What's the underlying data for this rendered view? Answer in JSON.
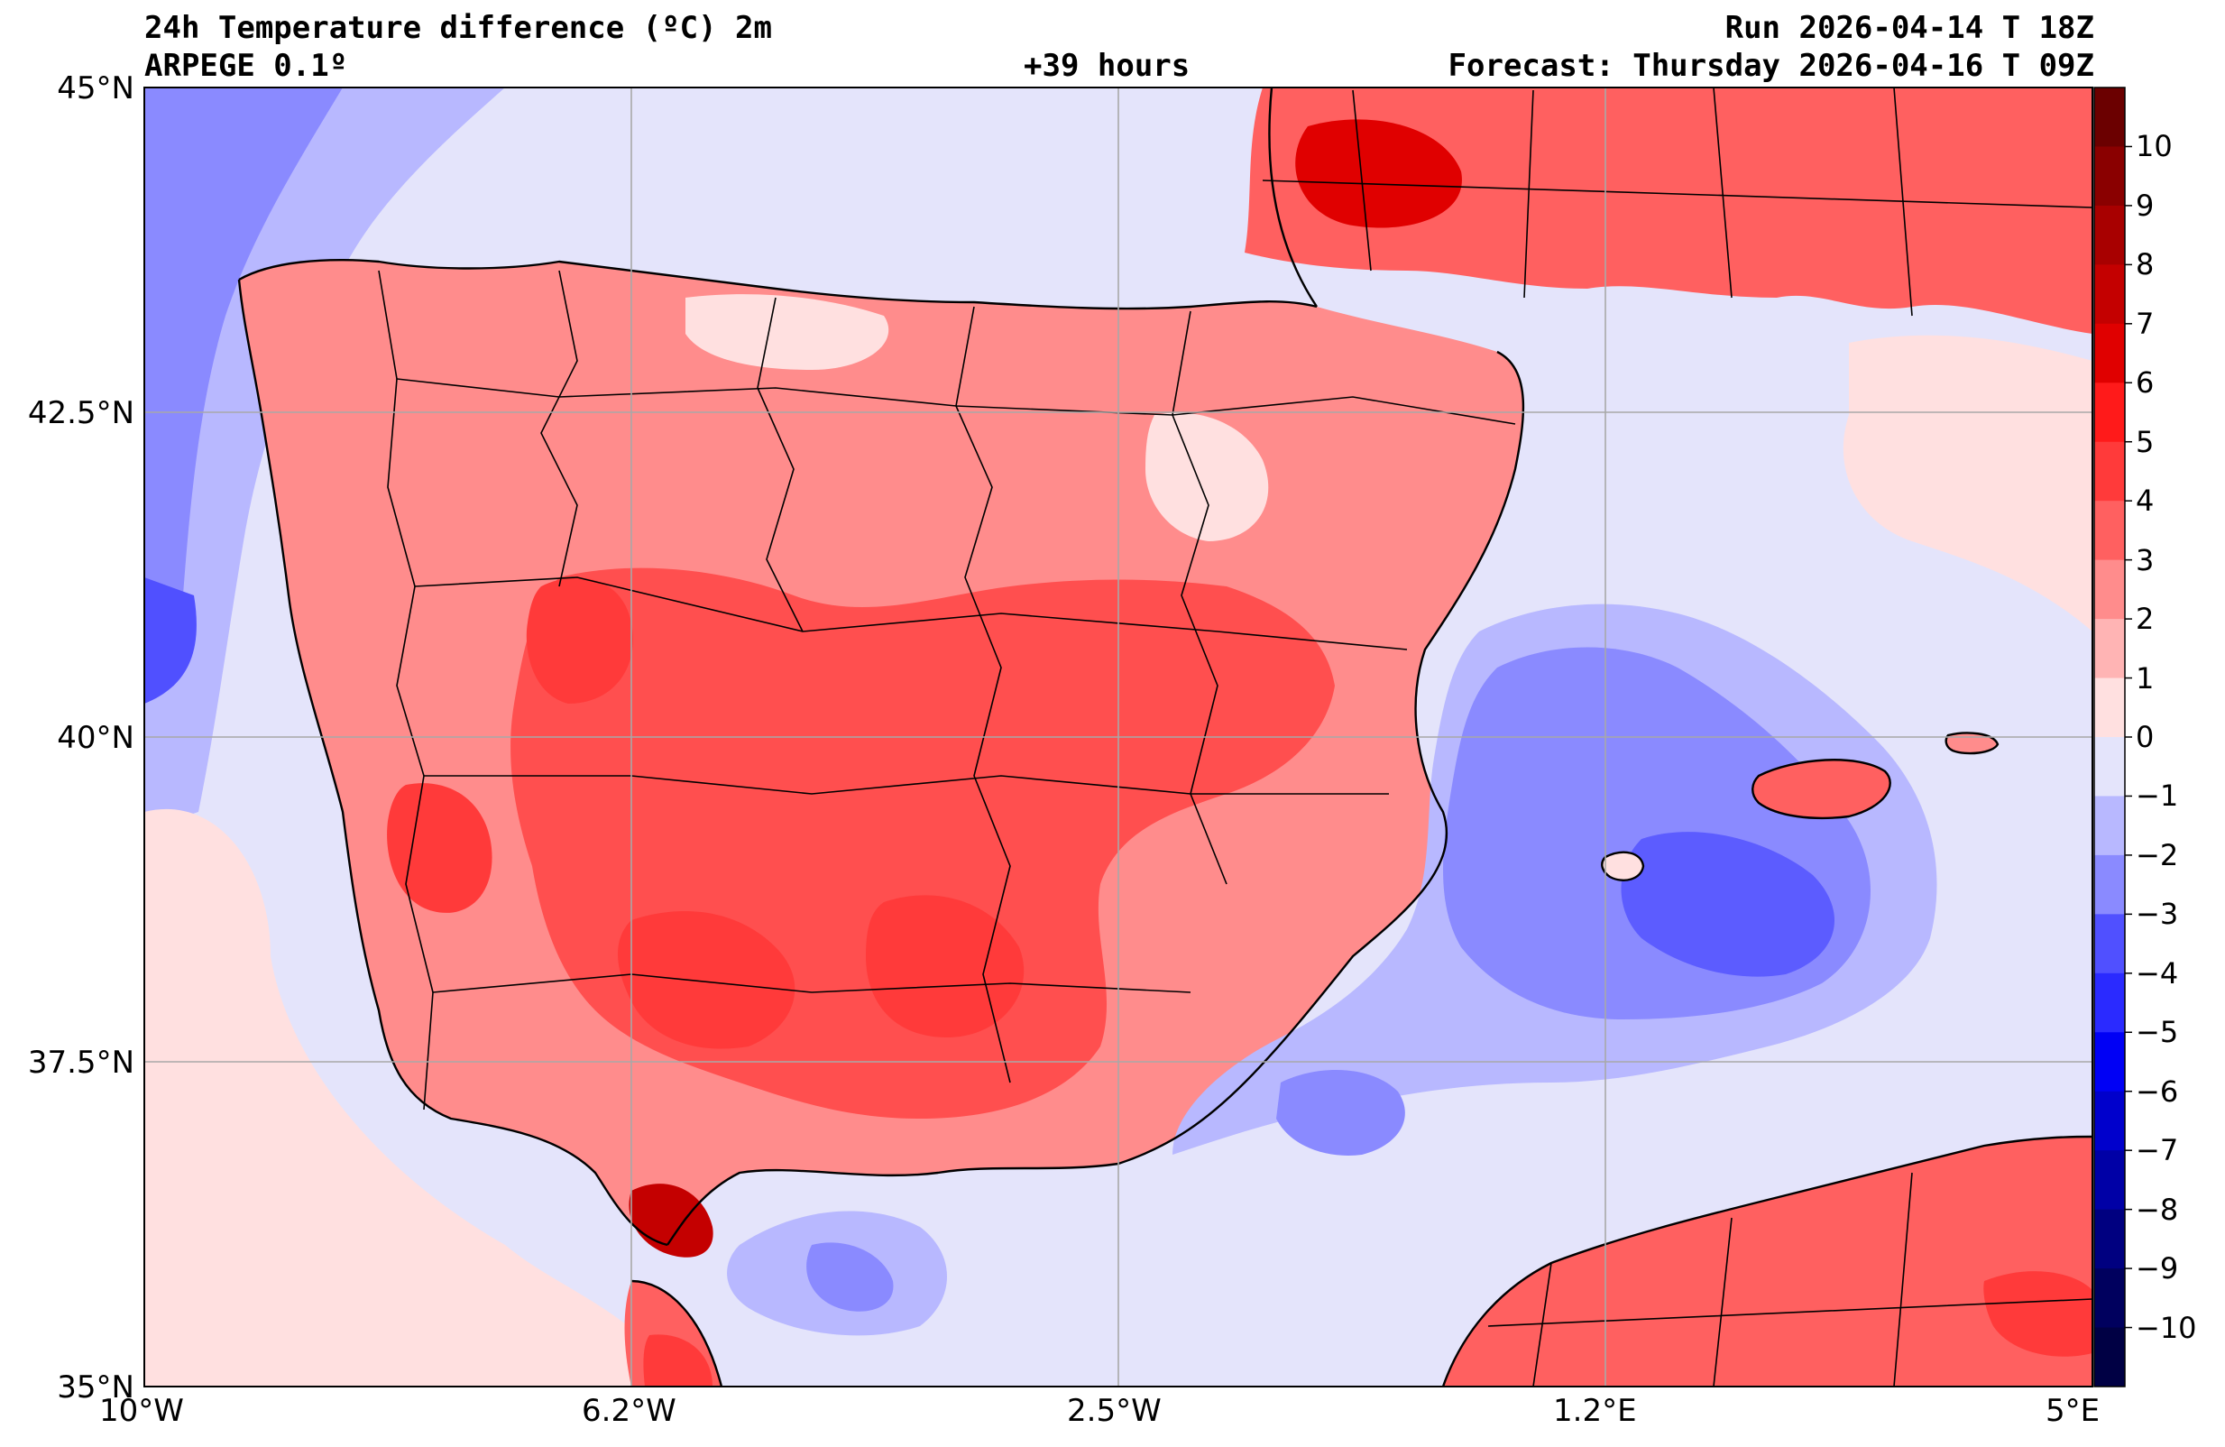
{
  "header": {
    "title_left": "24h Temperature difference (ºC) 2m",
    "model": "ARPEGE 0.1º",
    "lead_time": "+39 hours",
    "run": "Run 2026-04-14 T 18Z",
    "forecast": "Forecast: Thursday 2026-04-16 T 09Z"
  },
  "axes": {
    "lat_labels": [
      "45°N",
      "42.5°N",
      "40°N",
      "37.5°N",
      "35°N"
    ],
    "lon_labels": [
      "10°W",
      "6.2°W",
      "2.5°W",
      "1.2°E",
      "5°E"
    ],
    "lat_range": [
      35,
      45
    ],
    "lon_range": [
      -10,
      5
    ]
  },
  "colorbar": {
    "labels": [
      "10",
      "9",
      "8",
      "7",
      "6",
      "5",
      "4",
      "3",
      "2",
      "1",
      "0",
      "−1",
      "−2",
      "−3",
      "−4",
      "−5",
      "−6",
      "−7",
      "−8",
      "−9",
      "−10"
    ],
    "range": [
      -11,
      11
    ],
    "colors_top_to_bottom": [
      "#6b0000",
      "#8a0000",
      "#a80000",
      "#c40000",
      "#e00000",
      "#ff1a1a",
      "#ff3a3a",
      "#ff6060",
      "#ff8c8c",
      "#ffb4b4",
      "#ffe0e0",
      "#e4e4fb",
      "#b8b8ff",
      "#8a8aff",
      "#5050ff",
      "#2a2aff",
      "#0000f5",
      "#0000cc",
      "#0000a6",
      "#000080",
      "#00005e",
      "#000044"
    ]
  },
  "colors": {
    "sea_default": "#e4e4fb",
    "land_warm": "#ff8c8c",
    "land_hot": "#ff4f4f",
    "cold_sea": "#8a8aff",
    "cold_core": "#5c5cff",
    "neutral_positive": "#ffe0e0"
  }
}
